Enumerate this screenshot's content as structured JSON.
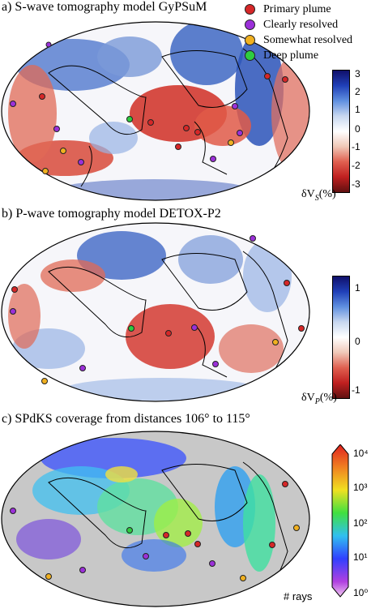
{
  "panels": [
    {
      "title": "a) S-wave tomography model GyPSuM",
      "colorbar_label": "δV",
      "colorbar_sub": "S",
      "colorbar_unit": "(%)",
      "ticks": [
        "3",
        "2",
        "1",
        "0",
        "-1",
        "-2",
        "-3"
      ]
    },
    {
      "title": "b) P-wave tomography model DETOX-P2",
      "colorbar_label": "δV",
      "colorbar_sub": "P",
      "colorbar_unit": "(%)",
      "ticks": [
        "1",
        "0",
        "-1"
      ]
    },
    {
      "title": "c) SPdKS coverage from distances 106° to 115°",
      "colorbar_label": "# rays",
      "ticks": [
        "10⁴",
        "10³",
        "10²",
        "10¹",
        "10⁰"
      ]
    }
  ],
  "legend": [
    {
      "label": "Primary plume",
      "color": "#d62728"
    },
    {
      "label": "Clearly resolved",
      "color": "#9b30d9"
    },
    {
      "label": "Somewhat resolved",
      "color": "#f0b020"
    },
    {
      "label": "Deep plume",
      "color": "#2ecc40"
    }
  ],
  "colors": {
    "red": "#c8282a",
    "blue": "#2044a8",
    "gray": "#c8c8c8"
  }
}
